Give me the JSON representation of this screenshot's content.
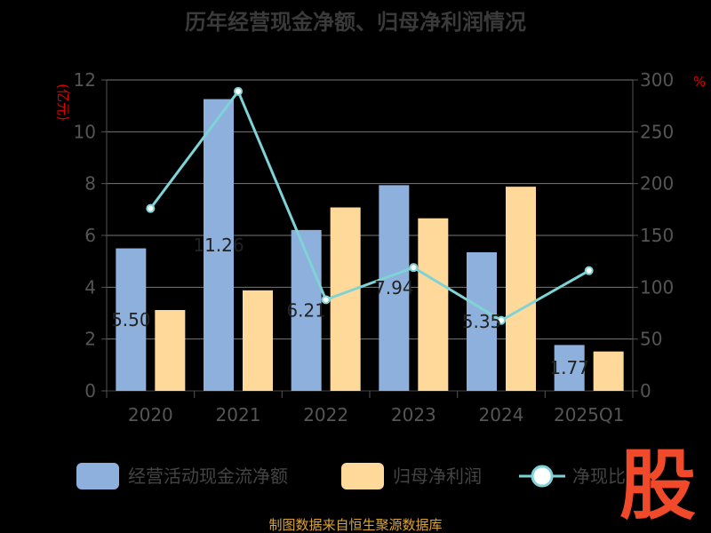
{
  "chart_data": {
    "type": "bar",
    "title": "历年经营现金净额、归母净利润情况",
    "left_unit": "(亿元)",
    "right_unit": "%",
    "categories": [
      "2020",
      "2021",
      "2022",
      "2023",
      "2024",
      "2025Q1"
    ],
    "left_ylim": [
      0,
      12
    ],
    "left_ticks": [
      "0",
      "2",
      "4",
      "6",
      "8",
      "10",
      "12"
    ],
    "right_ylim": [
      0,
      300
    ],
    "right_ticks": [
      "0",
      "50",
      "100",
      "150",
      "200",
      "250",
      "300"
    ],
    "grid": true,
    "series": [
      {
        "name": "经营活动现金流净额",
        "type": "bar",
        "axis": "left",
        "color": "#8eb0dc",
        "values": [
          5.5,
          11.26,
          6.21,
          7.94,
          5.35,
          1.77
        ]
      },
      {
        "name": "归母净利润",
        "type": "bar",
        "axis": "left",
        "color": "#ffd99a",
        "values": [
          3.12,
          3.88,
          7.08,
          6.66,
          7.88,
          1.52
        ]
      },
      {
        "name": "净现比",
        "type": "line",
        "axis": "right",
        "color": "#7fd3d6",
        "values": [
          176,
          289,
          88,
          119,
          68,
          116
        ]
      }
    ],
    "bar_labels": [
      "5.50",
      "11.26",
      "6.21",
      "7.94",
      "5.35",
      "1.77"
    ],
    "legend_position": "bottom",
    "legend_labels": [
      "经营活动现金流净额",
      "归母净利润",
      "净现比"
    ]
  },
  "source_text": "制图数据来自恒生聚源数据库",
  "watermark": "股"
}
